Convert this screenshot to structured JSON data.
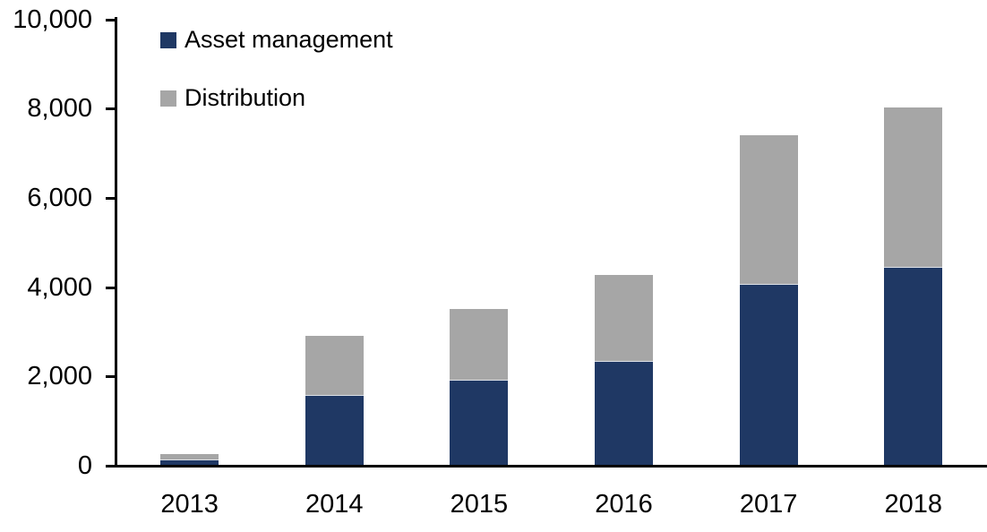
{
  "chart_data": {
    "type": "bar",
    "stacked": true,
    "title": "",
    "xlabel": "",
    "ylabel": "",
    "categories": [
      "2013",
      "2014",
      "2015",
      "2016",
      "2017",
      "2018"
    ],
    "series": [
      {
        "name": "Asset management",
        "color": "#1F3864",
        "values": [
          130,
          1560,
          1900,
          2320,
          4050,
          4430
        ]
      },
      {
        "name": "Distribution",
        "color": "#A6A6A6",
        "values": [
          105,
          1320,
          1600,
          1930,
          3330,
          3570
        ]
      }
    ],
    "totals": [
      235,
      2880,
      3500,
      4250,
      7380,
      8000
    ],
    "ylim": [
      0,
      10000
    ],
    "y_tick_values": [
      0,
      2000,
      4000,
      6000,
      8000,
      10000
    ],
    "y_tick_labels": [
      "0",
      "2,000",
      "4,000",
      "6,000",
      "8,000",
      "10,000"
    ],
    "grid": false,
    "legend_position": "top-left-inside"
  },
  "colors": {
    "axis": "#000000",
    "background": "#FFFFFF",
    "asset_management": "#1F3864",
    "distribution": "#A6A6A6"
  }
}
